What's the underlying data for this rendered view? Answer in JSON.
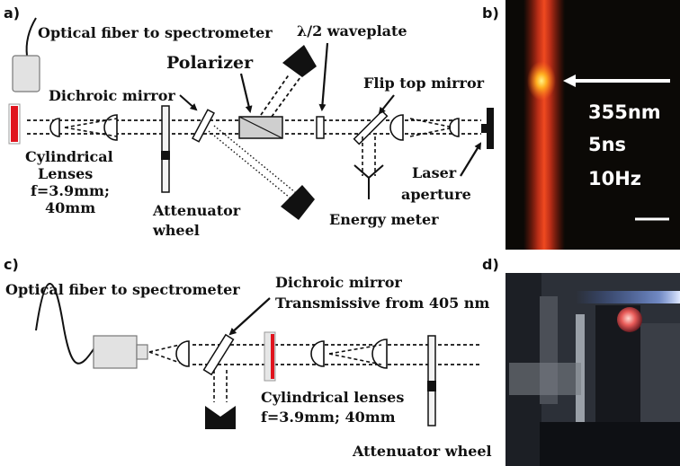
{
  "panels": {
    "a": {
      "letter": "a)",
      "labels": {
        "fiber": "Optical fiber to spectrometer",
        "polarizer": "Polarizer",
        "waveplate": "λ/2 waveplate",
        "dichroic": "Dichroic mirror",
        "flip_mirror": "Flip top mirror",
        "lens_line1": "Cylindrical",
        "lens_line2": "Lenses",
        "lens_line3": "f=3.9mm;",
        "lens_line4": "40mm",
        "attenuator_line1": "Attenuator",
        "attenuator_line2": "wheel",
        "energy_meter": "Energy meter",
        "laser_line1": "Laser",
        "laser_line2": "aperture"
      }
    },
    "b": {
      "letter": "b)",
      "photo_text": [
        "355nm",
        "5ns",
        "10Hz"
      ]
    },
    "c": {
      "letter": "c)",
      "labels": {
        "fiber": "Optical fiber to spectrometer",
        "dichroic_line1": "Dichroic mirror",
        "dichroic_line2": "Transmissive from 405 nm",
        "lens_line1": "Cylindrical lenses",
        "lens_line2": "f=3.9mm; 40mm",
        "attenuator": "Attenuator wheel"
      }
    },
    "d": {
      "letter": "d)"
    }
  },
  "colors": {
    "sample_red": "#e0141e",
    "ink": "#111111",
    "component_gray": "#d0d0d0",
    "photo_b_bg": "#0b0906",
    "photo_d_bg": "#2c3038"
  }
}
